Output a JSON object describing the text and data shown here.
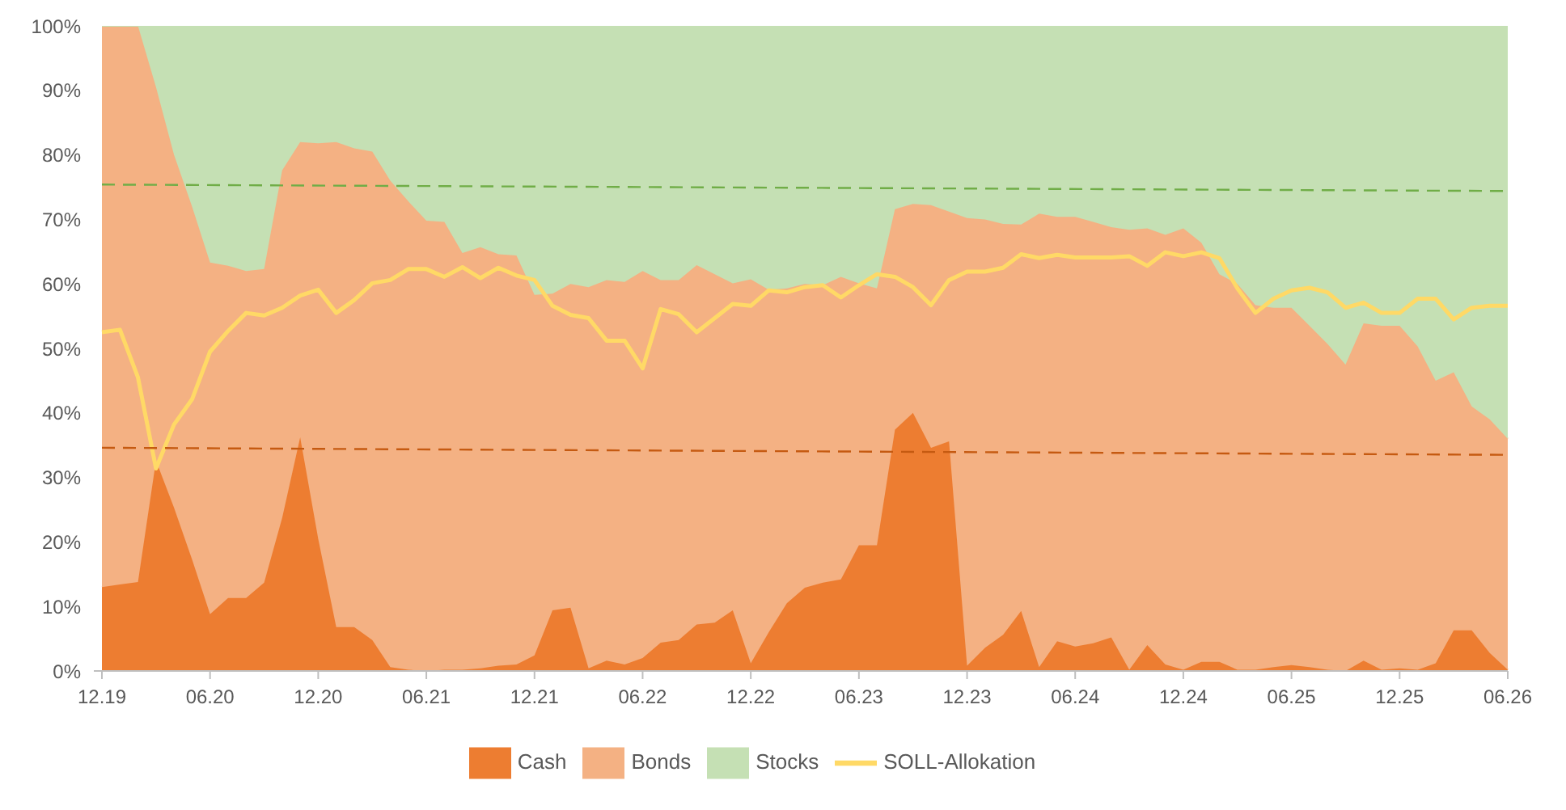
{
  "chart_data": {
    "type": "area",
    "stacked": true,
    "legend": "bottom",
    "grid": false,
    "categories": [
      "12.19",
      null,
      null,
      null,
      null,
      null,
      "06.20",
      null,
      null,
      null,
      null,
      null,
      "12.20",
      null,
      null,
      null,
      null,
      null,
      "06.21",
      null,
      null,
      null,
      null,
      null,
      "12.21",
      null,
      null,
      null,
      null,
      null,
      "06.22",
      null,
      null,
      null,
      null,
      null,
      "12.22",
      null,
      null,
      null,
      null,
      null,
      "06.23",
      null,
      null,
      null,
      null,
      null,
      "12.23",
      null,
      null,
      null,
      null,
      null,
      "06.24",
      null,
      null,
      null,
      null,
      null,
      "12.24",
      null,
      null,
      null,
      null,
      null,
      "06.25",
      null,
      null,
      null,
      null,
      null,
      "12.25",
      null,
      null,
      null,
      null,
      null,
      "06.26"
    ],
    "ylim": [
      0,
      100
    ],
    "yticks": [
      {
        "value": 0,
        "label": "0%"
      },
      {
        "value": 10,
        "label": "10%"
      },
      {
        "value": 20,
        "label": "20%"
      },
      {
        "value": 30,
        "label": "30%"
      },
      {
        "value": 40,
        "label": "40%"
      },
      {
        "value": 50,
        "label": "50%"
      },
      {
        "value": 60,
        "label": "60%"
      },
      {
        "value": 70,
        "label": "70%"
      },
      {
        "value": 80,
        "label": "80%"
      },
      {
        "value": 90,
        "label": "90%"
      },
      {
        "value": 100,
        "label": "100%"
      }
    ],
    "series": [
      {
        "name": "Cash",
        "color": "#ed7d31",
        "values": [
          13,
          13.4,
          13.8,
          32.6,
          25.3,
          17.3,
          8.8,
          11.3,
          11.3,
          13.7,
          23.7,
          36.2,
          20.5,
          6.8,
          6.8,
          4.8,
          0.6,
          0.2,
          0,
          0.2,
          0.2,
          0.4,
          0.8,
          1,
          2.4,
          9.4,
          9.8,
          0.4,
          1.6,
          1,
          2,
          4.4,
          4.8,
          7.2,
          7.5,
          9.4,
          1.2,
          6,
          10.5,
          12.9,
          13.7,
          14.2,
          19.5,
          19.5,
          37.4,
          40,
          34.6,
          35.6,
          0.8,
          3.6,
          5.6,
          9.3,
          0.6,
          4.6,
          3.8,
          4.3,
          5.2,
          0.2,
          4,
          1,
          0.2,
          1.4,
          1.4,
          0.2,
          0.2,
          0.6,
          0.9,
          0.6,
          0.2,
          0,
          1.6,
          0.2,
          0.4,
          0.2,
          1.2,
          6.3,
          6.3,
          2.8,
          0.2
        ]
      },
      {
        "name": "Bonds",
        "color": "#f4b183",
        "values": [
          87,
          86.6,
          86.2,
          57.9,
          54.7,
          54.7,
          54.5,
          51.5,
          50.7,
          48.6,
          53.9,
          45.8,
          61.3,
          75.2,
          74.2,
          75.7,
          75.4,
          72.6,
          69.8,
          69.4,
          64.6,
          65.3,
          63.8,
          63.4,
          55.9,
          49.1,
          50.2,
          59.1,
          59,
          59.3,
          60,
          56.2,
          55.8,
          55.7,
          54,
          50.7,
          59.5,
          53.1,
          48.8,
          47.1,
          46.1,
          46.9,
          40.6,
          39.8,
          34.2,
          32.4,
          37.6,
          35.6,
          69.4,
          66.4,
          63.7,
          59.9,
          70.3,
          65.8,
          66.6,
          65.3,
          63.6,
          68.2,
          64.6,
          66.6,
          68.4,
          65,
          60.1,
          59.8,
          56.5,
          55.7,
          55.4,
          52.9,
          50.5,
          47.5,
          52.3,
          53.3,
          53.1,
          50.1,
          43.8,
          40,
          34.7,
          36.2,
          35.8
        ]
      },
      {
        "name": "Stocks",
        "color": "#c5e0b4",
        "values": [
          0,
          0,
          0,
          9.5,
          20,
          28,
          36.7,
          37.2,
          38,
          37.7,
          22.4,
          18,
          18.2,
          18,
          19,
          19.5,
          24,
          27.2,
          30.2,
          30.4,
          35.2,
          34.3,
          35.4,
          35.6,
          41.7,
          41.5,
          40,
          40.5,
          39.4,
          39.7,
          38,
          39.4,
          39.4,
          37.1,
          38.5,
          39.9,
          39.3,
          40.9,
          40.7,
          40,
          40.2,
          38.9,
          39.9,
          40.7,
          28.4,
          27.6,
          27.8,
          28.8,
          29.8,
          30,
          30.7,
          30.8,
          29.1,
          29.6,
          29.6,
          30.4,
          31.2,
          31.6,
          31.4,
          32.4,
          31.4,
          33.6,
          38.5,
          40,
          43.3,
          43.7,
          43.7,
          46.5,
          49.3,
          52.5,
          46.1,
          46.5,
          46.5,
          49.7,
          55,
          53.7,
          59,
          61,
          64
        ]
      },
      {
        "name": "SOLL-Allokation",
        "type": "line",
        "color": "#ffd966",
        "values": [
          52.5,
          52.9,
          45.5,
          31.4,
          38.2,
          42.1,
          49.5,
          52.7,
          55.5,
          55.1,
          56.3,
          58.2,
          59.1,
          55.5,
          57.5,
          60.1,
          60.6,
          62.3,
          62.3,
          61.1,
          62.6,
          60.9,
          62.5,
          61.3,
          60.6,
          56.6,
          55.2,
          54.7,
          51.2,
          51.2,
          46.9,
          56.1,
          55.3,
          52.5,
          54.7,
          56.9,
          56.6,
          59,
          58.7,
          59.5,
          59.8,
          57.9,
          59.8,
          61.5,
          61.1,
          59.5,
          56.7,
          60.6,
          61.9,
          61.9,
          62.5,
          64.6,
          64,
          64.5,
          64.1,
          64.1,
          64.1,
          64.3,
          62.8,
          64.9,
          64.3,
          64.9,
          64,
          59.3,
          55.5,
          57.7,
          59,
          59.4,
          58.7,
          56.3,
          57.1,
          55.5,
          55.5,
          57.7,
          57.7,
          54.5,
          56.3,
          56.6,
          56.6
        ]
      },
      {
        "type": "line",
        "color": "#70ad47",
        "line_style": "dashed",
        "x": [
          "12.19",
          "06.26"
        ],
        "values": [
          75.4,
          74.4
        ]
      },
      {
        "type": "line",
        "color": "#c55a11",
        "line_style": "dashed",
        "x": [
          "12.19",
          "06.26"
        ],
        "values": [
          34.6,
          33.5
        ]
      }
    ]
  }
}
